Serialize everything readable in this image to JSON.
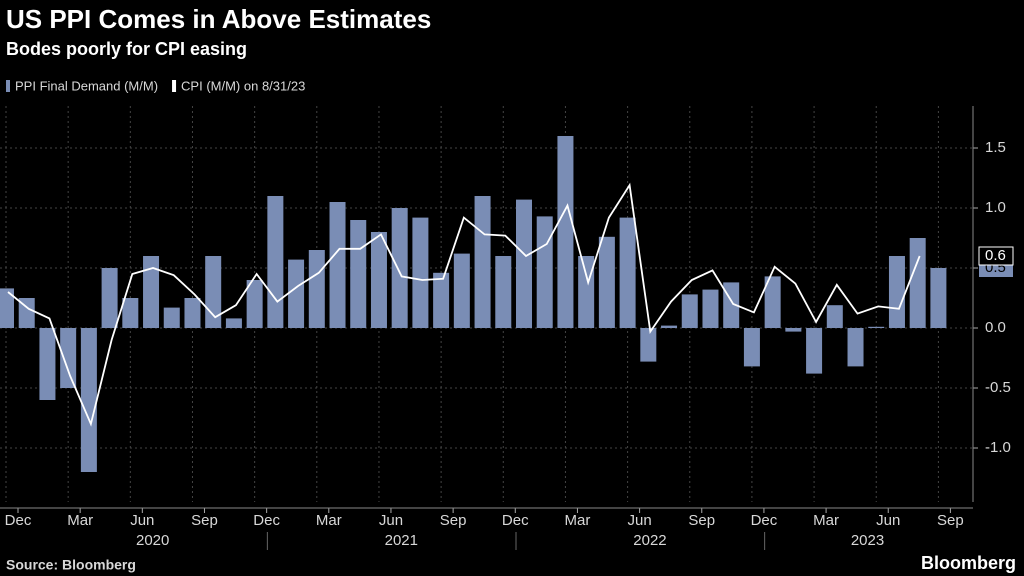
{
  "chart_data": {
    "type": "bar_line",
    "title": "US PPI Comes in Above Estimates",
    "subtitle": "Bodes poorly for CPI easing",
    "source": "Source: Bloomberg",
    "brand": "Bloomberg",
    "categories": [
      "Dec",
      null,
      null,
      "Mar",
      null,
      null,
      "Jun",
      null,
      null,
      "Sep",
      null,
      null,
      "Dec",
      null,
      null,
      "Mar",
      null,
      null,
      "Jun",
      null,
      null,
      "Sep",
      null,
      null,
      "Dec",
      null,
      null,
      "Mar",
      null,
      null,
      "Jun",
      null,
      null,
      "Sep",
      null,
      null,
      "Dec",
      null,
      null,
      "Mar",
      null,
      null,
      "Jun",
      null,
      null,
      "Sep"
    ],
    "years": [
      "2020",
      "2021",
      "2022",
      "2023"
    ],
    "series": [
      {
        "name": "PPI Final Demand (M/M)",
        "kind": "bar",
        "color": "#7a8db5",
        "values": [
          0.33,
          0.25,
          -0.6,
          -0.5,
          -1.2,
          0.5,
          0.25,
          0.6,
          0.17,
          0.25,
          0.6,
          0.08,
          0.4,
          1.1,
          0.57,
          0.65,
          1.05,
          0.9,
          0.8,
          1.0,
          0.92,
          0.46,
          0.62,
          1.1,
          0.6,
          1.07,
          0.93,
          1.6,
          0.6,
          0.76,
          0.92,
          -0.28,
          0.02,
          0.28,
          0.32,
          0.38,
          -0.32,
          0.43,
          -0.03,
          -0.38,
          0.19,
          -0.32,
          0.01,
          0.6,
          0.75,
          0.5
        ]
      },
      {
        "name": "CPI (M/M) on 8/31/23",
        "kind": "line",
        "color": "#ffffff",
        "values": [
          0.3,
          0.16,
          0.08,
          -0.4,
          -0.8,
          -0.1,
          0.45,
          0.5,
          0.44,
          0.28,
          0.09,
          0.19,
          0.45,
          0.22,
          0.35,
          0.46,
          0.66,
          0.66,
          0.78,
          0.43,
          0.4,
          0.41,
          0.92,
          0.78,
          0.77,
          0.6,
          0.7,
          1.02,
          0.38,
          0.92,
          1.19,
          -0.03,
          0.22,
          0.4,
          0.48,
          0.2,
          0.13,
          0.51,
          0.37,
          0.05,
          0.36,
          0.12,
          0.18,
          0.16,
          0.6,
          null
        ]
      }
    ],
    "ylim": [
      -1.45,
      1.85
    ],
    "yticks": [
      {
        "value": -1,
        "label": "-1.0"
      },
      -0.5,
      {
        "value": 0,
        "label": "0.0"
      },
      0.5,
      {
        "value": 1,
        "label": "1.0"
      },
      1.5
    ],
    "grid": true
  }
}
